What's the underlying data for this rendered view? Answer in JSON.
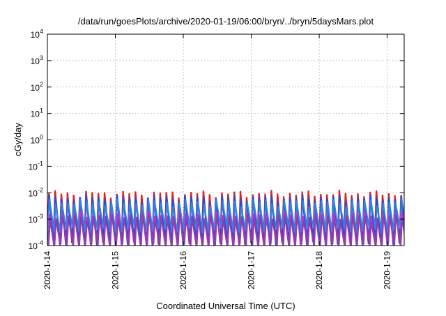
{
  "chart_data": {
    "type": "line",
    "title": "/data/run/goesPlots/archive/2020-01-19/06:00/bryn/../bryn/5daysMars.plot",
    "xlabel": "Coordinated Universal Time (UTC)",
    "ylabel": "cGy/day",
    "x_ticks": [
      "2020-1-14",
      "2020-1-15",
      "2020-1-16",
      "2020-1-17",
      "2020-1-18",
      "2020-1-19"
    ],
    "x_range_days": [
      0,
      5.25
    ],
    "y_scale": "log",
    "ylim": [
      0.0001,
      10000
    ],
    "y_ticks": [
      {
        "base": "10",
        "exp": "-4",
        "value": 0.0001
      },
      {
        "base": "10",
        "exp": "-3",
        "value": 0.001
      },
      {
        "base": "10",
        "exp": "-2",
        "value": 0.01
      },
      {
        "base": "10",
        "exp": "-1",
        "value": 0.1
      },
      {
        "base": "10",
        "exp": "0",
        "value": 1
      },
      {
        "base": "10",
        "exp": "1",
        "value": 10
      },
      {
        "base": "10",
        "exp": "2",
        "value": 100
      },
      {
        "base": "10",
        "exp": "3",
        "value": 1000
      },
      {
        "base": "10",
        "exp": "4",
        "value": 10000
      }
    ],
    "grid": true,
    "series": [
      {
        "color": "#e0201c",
        "peak_day": 0.5,
        "peak": 0.0095,
        "trough": 0.00015
      },
      {
        "color": "#1f4fd8",
        "peak_day": 0.5,
        "peak": 0.0065,
        "trough": 0.00012
      },
      {
        "color": "#2a86e8",
        "peak_day": 0.5,
        "peak": 0.0045,
        "trough": 0.0004
      },
      {
        "color": "#e21ed8",
        "peak_day": 0.5,
        "peak": 0.0015,
        "trough": 0.0001
      },
      {
        "color": "#8c3fa8",
        "peak_day": 0.5,
        "peak": 0.0012,
        "trough": 0.0001
      }
    ]
  }
}
